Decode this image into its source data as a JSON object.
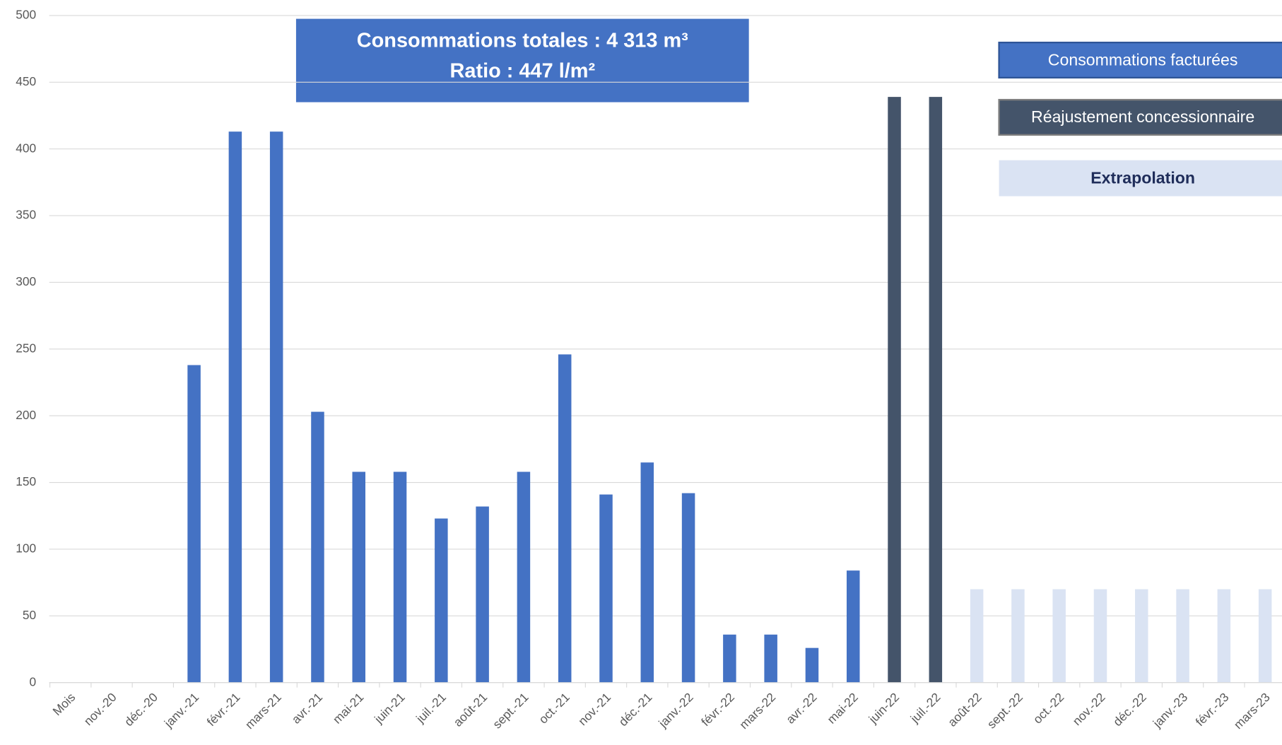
{
  "chart_data": {
    "type": "bar",
    "annotations": [
      "Consommations totales : 4 313 m³",
      "Ratio : 447 l/m²"
    ],
    "categories": [
      "Mois",
      "nov.-20",
      "déc.-20",
      "janv.-21",
      "févr.-21",
      "mars-21",
      "avr.-21",
      "mai-21",
      "juin-21",
      "juil.-21",
      "août-21",
      "sept.-21",
      "oct.-21",
      "nov.-21",
      "déc.-21",
      "janv.-22",
      "févr.-22",
      "mars-22",
      "avr.-22",
      "mai-22",
      "juin-22",
      "juil.-22",
      "août-22",
      "sept.-22",
      "oct.-22",
      "nov.-22",
      "déc.-22",
      "janv.-23",
      "févr.-23",
      "mars-23"
    ],
    "series": [
      {
        "name": "Consommations facturées",
        "color": "#4472c4",
        "values": [
          null,
          null,
          null,
          238,
          413,
          413,
          203,
          158,
          158,
          123,
          132,
          158,
          246,
          141,
          165,
          142,
          36,
          36,
          26,
          84,
          null,
          null,
          null,
          null,
          null,
          null,
          null,
          null,
          null,
          null
        ]
      },
      {
        "name": "Réajustement concessionnaire",
        "color": "#44546a",
        "values": [
          null,
          null,
          null,
          null,
          null,
          null,
          null,
          null,
          null,
          null,
          null,
          null,
          null,
          null,
          null,
          null,
          null,
          null,
          null,
          null,
          439,
          439,
          null,
          null,
          null,
          null,
          null,
          null,
          null,
          null
        ]
      },
      {
        "name": "Extrapolation",
        "color": "#dae3f3",
        "values": [
          null,
          null,
          null,
          null,
          null,
          null,
          null,
          null,
          null,
          null,
          null,
          null,
          null,
          null,
          null,
          null,
          null,
          null,
          null,
          null,
          null,
          null,
          70,
          70,
          70,
          70,
          70,
          70,
          70,
          70
        ]
      }
    ],
    "ylim": [
      0,
      500
    ],
    "yticks": [
      0,
      50,
      100,
      150,
      200,
      250,
      300,
      350,
      400,
      450,
      500
    ],
    "grid": true
  }
}
